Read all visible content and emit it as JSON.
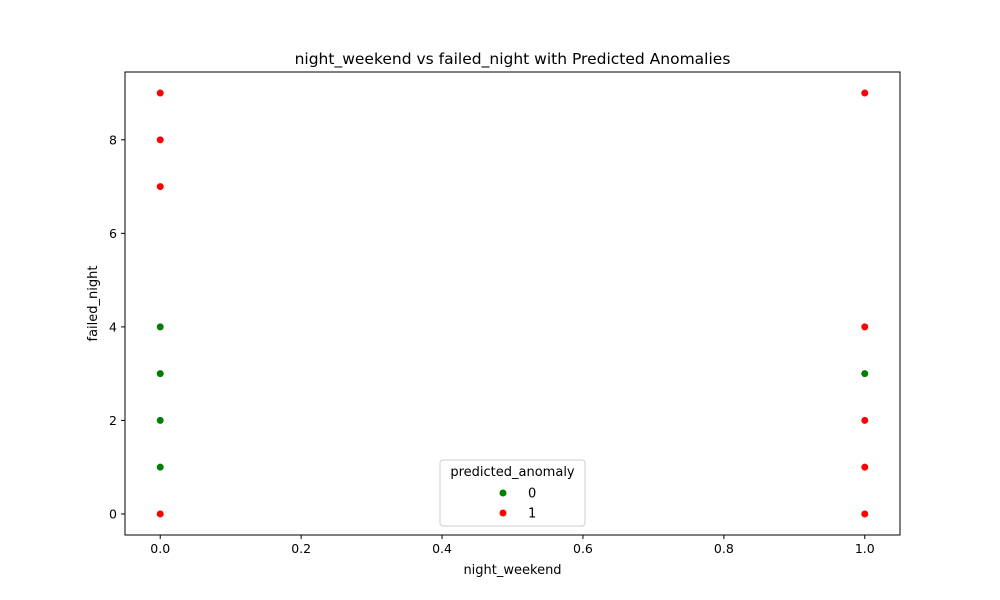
{
  "chart_data": {
    "type": "scatter",
    "title": "night_weekend vs failed_night with Predicted Anomalies",
    "xlabel": "night_weekend",
    "ylabel": "failed_night",
    "xlim": [
      -0.05,
      1.05
    ],
    "ylim": [
      -0.45,
      9.45
    ],
    "xticks": [
      0.0,
      0.2,
      0.4,
      0.6,
      0.8,
      1.0
    ],
    "xtick_labels": [
      "0.0",
      "0.2",
      "0.4",
      "0.6",
      "0.8",
      "1.0"
    ],
    "yticks": [
      0,
      2,
      4,
      6,
      8
    ],
    "ytick_labels": [
      "0",
      "2",
      "4",
      "6",
      "8"
    ],
    "grid": false,
    "legend": {
      "title": "predicted_anomaly",
      "placement": "lower-center"
    },
    "series": [
      {
        "name": "0",
        "color": "#008000",
        "points": [
          {
            "x": 0,
            "y": 1
          },
          {
            "x": 0,
            "y": 2
          },
          {
            "x": 0,
            "y": 3
          },
          {
            "x": 0,
            "y": 4
          },
          {
            "x": 1,
            "y": 3
          }
        ]
      },
      {
        "name": "1",
        "color": "#ff0000",
        "points": [
          {
            "x": 0,
            "y": 0
          },
          {
            "x": 0,
            "y": 7
          },
          {
            "x": 0,
            "y": 8
          },
          {
            "x": 0,
            "y": 9
          },
          {
            "x": 1,
            "y": 0
          },
          {
            "x": 1,
            "y": 1
          },
          {
            "x": 1,
            "y": 2
          },
          {
            "x": 1,
            "y": 4
          },
          {
            "x": 1,
            "y": 9
          }
        ]
      }
    ]
  }
}
